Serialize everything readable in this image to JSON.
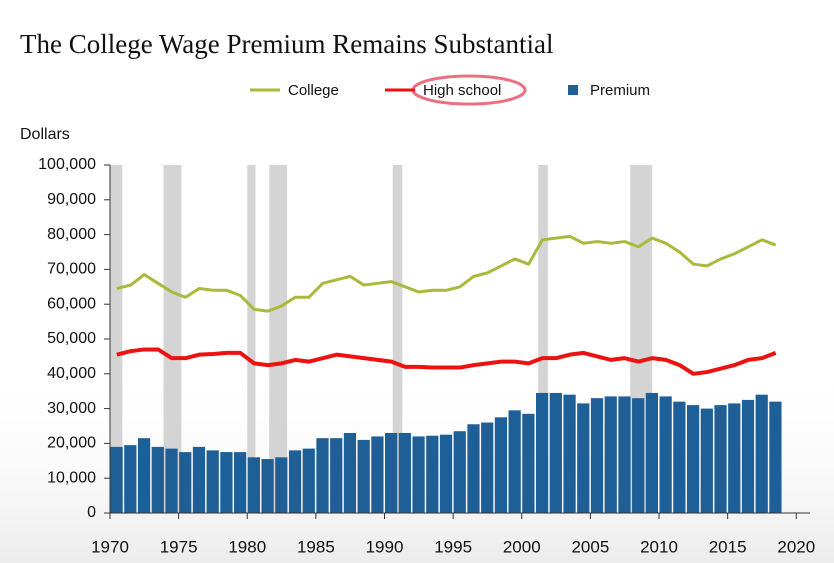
{
  "chart_data": {
    "type": "bar-line",
    "title": "The College Wage Premium Remains Substantial",
    "y_label": "Dollars",
    "x": [
      1970,
      1971,
      1972,
      1973,
      1974,
      1975,
      1976,
      1977,
      1978,
      1979,
      1980,
      1981,
      1982,
      1983,
      1984,
      1985,
      1986,
      1987,
      1988,
      1989,
      1990,
      1991,
      1992,
      1993,
      1994,
      1995,
      1996,
      1997,
      1998,
      1999,
      2000,
      2001,
      2002,
      2003,
      2004,
      2005,
      2006,
      2007,
      2008,
      2009,
      2010,
      2011,
      2012,
      2013,
      2014,
      2015,
      2016,
      2017,
      2018
    ],
    "series": [
      {
        "name": "College",
        "color": "#a9b93b",
        "kind": "line",
        "values": [
          64500,
          65500,
          68500,
          66000,
          63500,
          62000,
          64500,
          64000,
          64000,
          62500,
          58500,
          58000,
          59500,
          62000,
          62000,
          66000,
          67000,
          68000,
          65500,
          66000,
          66500,
          65000,
          63500,
          64000,
          64000,
          65000,
          68000,
          69000,
          71000,
          73000,
          71500,
          78500,
          79000,
          79500,
          77500,
          78000,
          77500,
          78000,
          76500,
          79000,
          77500,
          75000,
          71500,
          71000,
          73000,
          74500,
          76500,
          78500,
          77000
        ]
      },
      {
        "name": "High school",
        "color": "#ee1111",
        "kind": "line",
        "values": [
          45500,
          46500,
          47000,
          47000,
          44500,
          44500,
          45500,
          45700,
          46000,
          46000,
          43000,
          42500,
          43000,
          44000,
          43500,
          44500,
          45500,
          45000,
          44500,
          44000,
          43500,
          42000,
          42000,
          41800,
          41800,
          41800,
          42500,
          43000,
          43500,
          43500,
          43000,
          44500,
          44500,
          45500,
          46000,
          45000,
          44000,
          44500,
          43500,
          44500,
          44000,
          42500,
          40000,
          40500,
          41500,
          42500,
          44000,
          44500,
          46000
        ]
      },
      {
        "name": "Premium",
        "color": "#1f5f97",
        "kind": "bar",
        "values": [
          19000,
          19500,
          21500,
          19000,
          18500,
          17500,
          19000,
          18000,
          17500,
          17500,
          16000,
          15500,
          16000,
          18000,
          18500,
          21500,
          21500,
          23000,
          21000,
          22000,
          23000,
          23000,
          22000,
          22200,
          22500,
          23500,
          25500,
          26000,
          27500,
          29500,
          28500,
          34500,
          34500,
          34000,
          31500,
          33000,
          33500,
          33500,
          33000,
          34500,
          33500,
          32000,
          31000,
          30000,
          31000,
          31500,
          32500,
          34000,
          32000
        ]
      }
    ],
    "recessions": [
      [
        1970,
        1970.9
      ],
      [
        1973.9,
        1975.2
      ],
      [
        1980,
        1980.6
      ],
      [
        1981.6,
        1982.9
      ],
      [
        1990.6,
        1991.3
      ],
      [
        2001.2,
        2001.9
      ],
      [
        2007.9,
        2009.5
      ]
    ],
    "xlim": [
      1970,
      2021
    ],
    "xticks": [
      1970,
      1975,
      1980,
      1985,
      1990,
      1995,
      2000,
      2005,
      2010,
      2015,
      2020
    ],
    "ylim": [
      0,
      100000
    ],
    "yticks": [
      0,
      {
        "value": 10000,
        "label": "10,000"
      },
      {
        "value": 20000,
        "label": "20,000"
      },
      {
        "value": 30000,
        "label": "30,000"
      },
      {
        "value": 40000,
        "label": "40,000"
      },
      {
        "value": 50000,
        "label": "50,000"
      },
      {
        "value": 60000,
        "label": "60,000"
      },
      {
        "value": 70000,
        "label": "70,000"
      },
      {
        "value": 80000,
        "label": "80,000"
      },
      {
        "value": 90000,
        "label": "90,000"
      },
      {
        "value": 100000,
        "label": "100,000"
      }
    ]
  }
}
